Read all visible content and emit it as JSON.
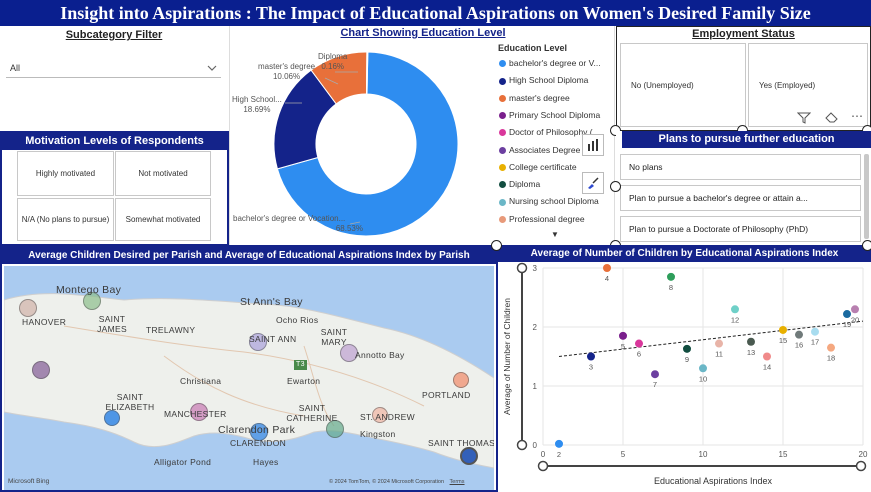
{
  "title": "Insight into Aspirations : The Impact of Educational Aspirations on Women's Desired Family Size",
  "subcategory_filter": {
    "heading": "Subcategory Filter",
    "selected": "All"
  },
  "motivation": {
    "heading": "Motivation Levels of Respondents",
    "tiles": [
      "Highly motivated",
      "Not motivated",
      "N/A (No plans to pursue)",
      "Somewhat motivated"
    ]
  },
  "donut": {
    "heading": "Chart Showing Education Level",
    "legend_title": "Education Level",
    "labels": {
      "diploma": "Diploma",
      "diploma_pct": "0.16%",
      "masters": "master's degree",
      "masters_pct": "10.06%",
      "hs": "High School...",
      "hs_pct": "18.69%",
      "bach": "bachelor's degree or Vocation...",
      "bach_pct": "68.53%"
    },
    "legend": [
      {
        "label": "bachelor's degree or V...",
        "color": "#2e8df0"
      },
      {
        "label": "High School Diploma",
        "color": "#14238a"
      },
      {
        "label": "master's degree",
        "color": "#e8703a"
      },
      {
        "label": "Primary School Diploma",
        "color": "#7a1f8c"
      },
      {
        "label": "Doctor of Philosophy (...",
        "color": "#d9379b"
      },
      {
        "label": "Associates Degree",
        "color": "#6c3fa0"
      },
      {
        "label": "College certificate",
        "color": "#e8b000"
      },
      {
        "label": "Diploma",
        "color": "#124d40"
      },
      {
        "label": "Nursing school Diploma",
        "color": "#6bb7c7"
      },
      {
        "label": "Professional degree",
        "color": "#e89a7a"
      }
    ]
  },
  "employment": {
    "heading": "Employment Status",
    "tiles": [
      "No (Unemployed)",
      "Yes (Employed)"
    ]
  },
  "plans": {
    "heading": "Plans to pursue further education",
    "items": [
      "No plans",
      "Plan to pursue a bachelor's degree or attain a...",
      "Plan to pursue a Doctorate of Philosophy (PhD)"
    ]
  },
  "map": {
    "heading": "Average Children Desired per Parish and Average of Educational Aspirations Index by Parish",
    "labels": {
      "montego": "Montego Bay",
      "hanover": "HANOVER",
      "st_james": "SAINT JAMES",
      "trelawny": "TRELAWNY",
      "st_anns": "St Ann's Bay",
      "ocho": "Ocho Rios",
      "st_ann": "SAINT ANN",
      "st_mary": "SAINT MARY",
      "annotto": "Annotto Bay",
      "christiana": "Christiana",
      "ewarton": "Ewarton",
      "st_elizabeth": "SAINT ELIZABETH",
      "manchester": "MANCHESTER",
      "clarendon_park": "Clarendon Park",
      "clarendon": "CLARENDON",
      "st_catherine": "SAINT CATHERINE",
      "st_andrew": "ST. ANDREW",
      "kingston": "Kingston",
      "portland": "PORTLAND",
      "st_thomas": "SAINT THOMAS",
      "alligator": "Alligator Pond",
      "hayes": "Hayes",
      "route": "T3",
      "bing": "Microsoft Bing",
      "copyright": "© 2024 TomTom, © 2024 Microsoft Corporation",
      "terms": "Terms"
    }
  },
  "scatter": {
    "heading": "Average of Number of Children by Educational Aspirations Index"
  },
  "chart_data": [
    {
      "type": "pie",
      "title": "Chart Showing Education Level",
      "legend_title": "Education Level",
      "categories": [
        "bachelor's degree or Vocation...",
        "High School Diploma",
        "master's degree",
        "Diploma"
      ],
      "values": [
        68.53,
        18.69,
        10.06,
        0.16
      ]
    },
    {
      "type": "scatter",
      "title": "Average of Number of Children by Educational Aspirations Index",
      "xlabel": "Educational Aspirations Index",
      "ylabel": "Average of Number of Children",
      "xlim": [
        0,
        20
      ],
      "ylim": [
        0,
        3
      ],
      "x_ticks": [
        0,
        5,
        10,
        15,
        20
      ],
      "y_ticks": [
        0,
        1,
        2,
        3
      ],
      "trendline": {
        "start": [
          1,
          1.5
        ],
        "end": [
          20,
          2.1
        ]
      },
      "points": [
        {
          "label": "2",
          "x": 1,
          "y": 0.02,
          "color": "#2e8df0"
        },
        {
          "label": "3",
          "x": 3,
          "y": 1.5,
          "color": "#14238a"
        },
        {
          "label": "4",
          "x": 4,
          "y": 3.0,
          "color": "#e8703a"
        },
        {
          "label": "5",
          "x": 5,
          "y": 1.85,
          "color": "#7a1f8c"
        },
        {
          "label": "6",
          "x": 6,
          "y": 1.72,
          "color": "#d9379b"
        },
        {
          "label": "7",
          "x": 7,
          "y": 1.2,
          "color": "#6c3fa0"
        },
        {
          "label": "8",
          "x": 8,
          "y": 2.85,
          "color": "#2e9e5b"
        },
        {
          "label": "9",
          "x": 9,
          "y": 1.63,
          "color": "#124d40"
        },
        {
          "label": "10",
          "x": 10,
          "y": 1.3,
          "color": "#6bb7c7"
        },
        {
          "label": "11",
          "x": 11,
          "y": 1.72,
          "color": "#e8b4a8"
        },
        {
          "label": "12",
          "x": 12,
          "y": 2.3,
          "color": "#6fd0c8"
        },
        {
          "label": "13",
          "x": 13,
          "y": 1.75,
          "color": "#4a5a50"
        },
        {
          "label": "14",
          "x": 14,
          "y": 1.5,
          "color": "#f08a8a"
        },
        {
          "label": "15",
          "x": 15,
          "y": 1.95,
          "color": "#e8b000"
        },
        {
          "label": "16",
          "x": 16,
          "y": 1.87,
          "color": "#707a7a"
        },
        {
          "label": "17",
          "x": 17,
          "y": 1.92,
          "color": "#a8dcef"
        },
        {
          "label": "18",
          "x": 18,
          "y": 1.65,
          "color": "#f5a880"
        },
        {
          "label": "19",
          "x": 19,
          "y": 2.22,
          "color": "#1a6aa0"
        },
        {
          "label": "20",
          "x": 19.5,
          "y": 2.3,
          "color": "#b880b0"
        }
      ]
    }
  ]
}
